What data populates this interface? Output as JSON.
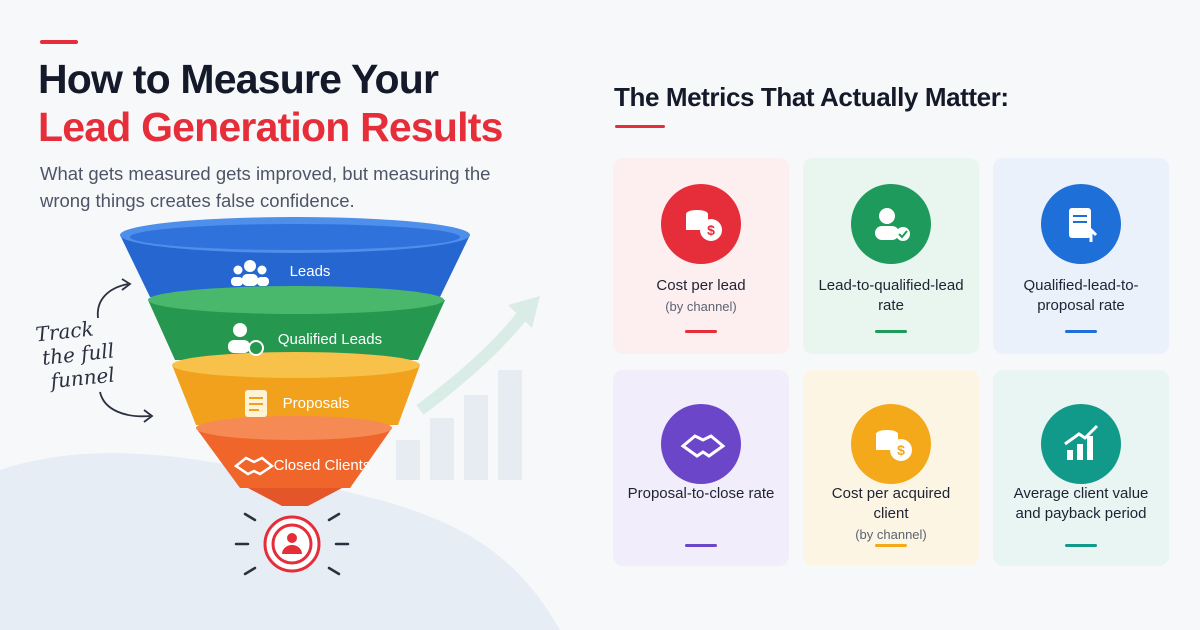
{
  "header": {
    "title_line1": "How to Measure Your",
    "title_line2": "Lead Generation Results",
    "subtitle": "What gets measured gets improved, but measuring the wrong things creates false confidence."
  },
  "funnel": {
    "stages": [
      "Leads",
      "Qualified Leads",
      "Proposals",
      "Closed Clients"
    ],
    "annotation": [
      "Track",
      "the full",
      "funnel"
    ]
  },
  "metrics": {
    "heading": "The Metrics That Actually Matter:",
    "cards": [
      {
        "label": "Cost per lead",
        "note": "(by channel)"
      },
      {
        "label": "Lead-to-qualified-lead rate"
      },
      {
        "label": "Qualified-lead-to-proposal rate"
      },
      {
        "label": "Proposal-to-close rate"
      },
      {
        "label": "Cost per acquired client",
        "note": "(by channel)"
      },
      {
        "label": "Average client value and payback period"
      }
    ]
  }
}
